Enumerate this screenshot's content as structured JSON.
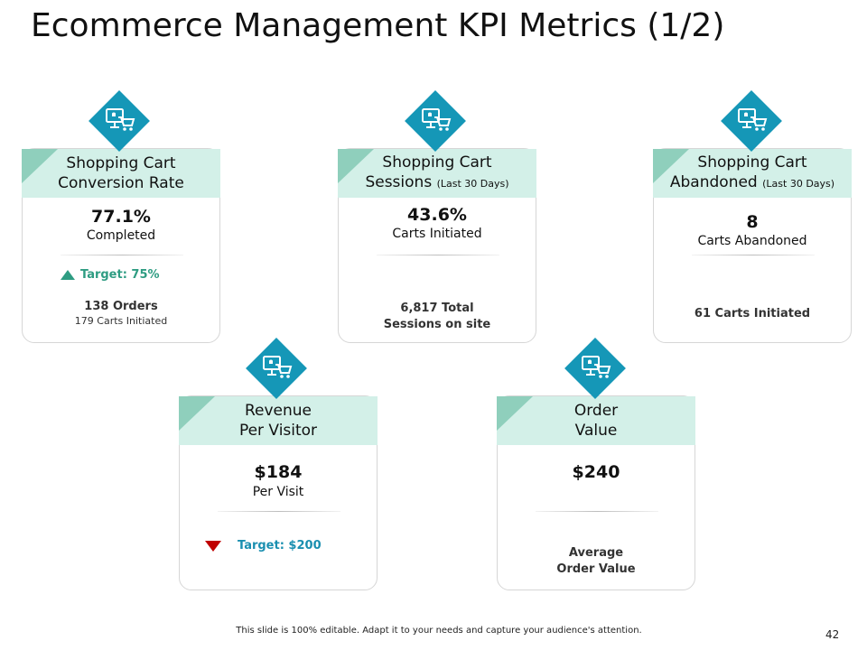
{
  "slide": {
    "title": "Ecommerce Management KPI Metrics (1/2)",
    "footer": "This slide is 100% editable. Adapt it to your needs and capture your audience's attention.",
    "page_number": "42"
  },
  "colors": {
    "icon_bg": "#1597b7",
    "header_bg": "#d3f0e8",
    "corner": "#8fcfbc",
    "target_up": "#2e9c82",
    "target_down": "#c00000",
    "target_text_teal": "#1a8fb0"
  },
  "cards": {
    "conversion": {
      "icon": "shopping-cart-monitor-icon",
      "title_line1": "Shopping Cart",
      "title_line2": "Conversion Rate",
      "value": "77.1%",
      "value_label": "Completed",
      "target": "Target: 75%",
      "note_bold": "138 Orders",
      "note_small": "179 Carts Initiated"
    },
    "sessions": {
      "icon": "shopping-cart-monitor-icon",
      "title_line1": "Shopping Cart",
      "title_line2": "Sessions",
      "title_suffix": "(Last 30 Days)",
      "value": "43.6%",
      "value_label": "Carts Initiated",
      "note_line1": "6,817 Total",
      "note_line2": "Sessions on site"
    },
    "abandoned": {
      "icon": "shopping-cart-monitor-icon",
      "title_line1": "Shopping Cart",
      "title_line2": "Abandoned",
      "title_suffix": "(Last 30 Days)",
      "value": "8",
      "value_label": "Carts Abandoned",
      "note_bold": "61 Carts Initiated"
    },
    "revenue": {
      "icon": "shopping-cart-monitor-icon",
      "title_line1": "Revenue",
      "title_line2": "Per Visitor",
      "value": "$184",
      "value_label": "Per Visit",
      "target": "Target: $200"
    },
    "order": {
      "icon": "shopping-cart-monitor-icon",
      "title_line1": "Order",
      "title_line2": "Value",
      "value": "$240",
      "note_line1": "Average",
      "note_line2": "Order Value"
    }
  }
}
